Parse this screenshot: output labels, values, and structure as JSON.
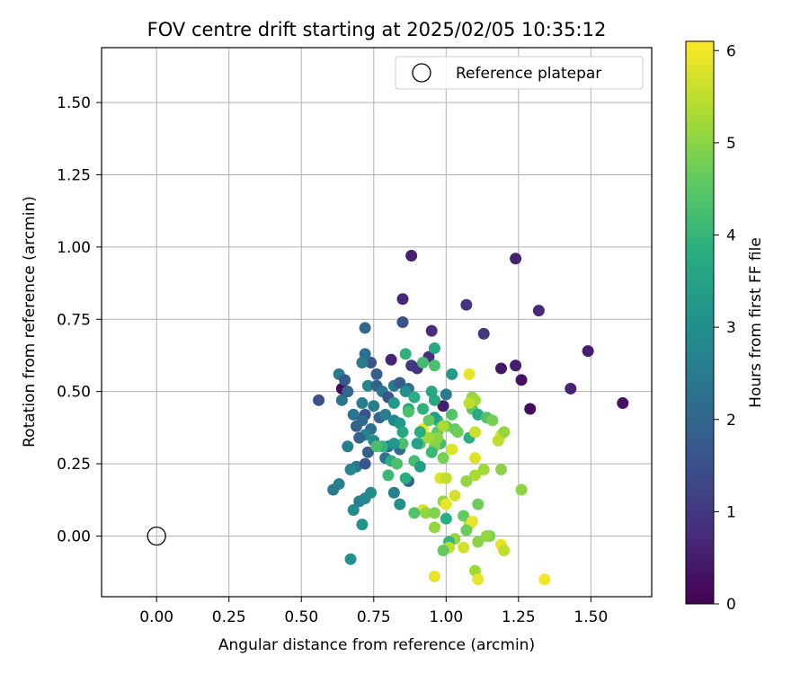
{
  "chart_data": {
    "type": "scatter",
    "title": "FOV centre drift starting at 2025/02/05 10:35:12",
    "xlabel": "Angular distance from reference (arcmin)",
    "ylabel": "Rotation from reference (arcmin)",
    "xlim": [
      -0.19,
      1.71
    ],
    "ylim": [
      -0.21,
      1.69
    ],
    "xticks": [
      0.0,
      0.25,
      0.5,
      0.75,
      1.0,
      1.25,
      1.5
    ],
    "yticks": [
      0.0,
      0.25,
      0.5,
      0.75,
      1.0,
      1.25,
      1.5
    ],
    "grid": true,
    "legend_position": "top-right",
    "reference": {
      "name": "Reference platepar",
      "x": 0.0,
      "y": 0.0
    },
    "colorbar": {
      "label": "Hours from first FF file",
      "colormap": "viridis",
      "range": [
        0,
        6.1
      ],
      "ticks": [
        0,
        1,
        2,
        3,
        4,
        5,
        6
      ]
    },
    "series": [
      {
        "points": [
          [
            0.88,
            0.97,
            0.5
          ],
          [
            1.24,
            0.96,
            0.6
          ],
          [
            0.85,
            0.82,
            0.7
          ],
          [
            1.07,
            0.8,
            0.9
          ],
          [
            1.32,
            0.78,
            0.7
          ],
          [
            0.95,
            0.71,
            0.8
          ],
          [
            1.13,
            0.7,
            1.0
          ],
          [
            1.49,
            0.64,
            0.5
          ],
          [
            1.26,
            0.54,
            0.3
          ],
          [
            1.19,
            0.58,
            0.4
          ],
          [
            1.24,
            0.59,
            0.5
          ],
          [
            1.43,
            0.51,
            0.6
          ],
          [
            1.61,
            0.46,
            0.3
          ],
          [
            1.29,
            0.44,
            0.2
          ],
          [
            0.88,
            0.59,
            1.0
          ],
          [
            0.9,
            0.58,
            0.9
          ],
          [
            0.94,
            0.62,
            0.8
          ],
          [
            0.81,
            0.61,
            0.6
          ],
          [
            0.99,
            0.45,
            0.5
          ],
          [
            0.64,
            0.51,
            0.2
          ],
          [
            0.56,
            0.47,
            1.5
          ],
          [
            0.85,
            0.74,
            1.5
          ],
          [
            0.72,
            0.72,
            2.0
          ],
          [
            0.74,
            0.6,
            1.6
          ],
          [
            0.76,
            0.56,
            1.8
          ],
          [
            0.72,
            0.63,
            2.2
          ],
          [
            0.63,
            0.56,
            2.5
          ],
          [
            0.65,
            0.54,
            1.7
          ],
          [
            0.71,
            0.6,
            2.5
          ],
          [
            0.73,
            0.52,
            2.8
          ],
          [
            0.76,
            0.52,
            1.9
          ],
          [
            0.66,
            0.5,
            2.0
          ],
          [
            0.64,
            0.47,
            2.3
          ],
          [
            0.71,
            0.46,
            2.6
          ],
          [
            0.78,
            0.5,
            2.4
          ],
          [
            0.8,
            0.48,
            1.6
          ],
          [
            0.82,
            0.52,
            2.5
          ],
          [
            0.84,
            0.53,
            1.8
          ],
          [
            0.87,
            0.51,
            2.2
          ],
          [
            0.75,
            0.45,
            2.5
          ],
          [
            0.72,
            0.42,
            1.6
          ],
          [
            0.68,
            0.42,
            2.3
          ],
          [
            0.71,
            0.4,
            2.1
          ],
          [
            0.69,
            0.38,
            1.9
          ],
          [
            0.74,
            0.37,
            2.2
          ],
          [
            0.77,
            0.41,
            1.9
          ],
          [
            0.79,
            0.42,
            2.6
          ],
          [
            0.82,
            0.4,
            2.8
          ],
          [
            0.72,
            0.35,
            2.7
          ],
          [
            0.75,
            0.33,
            2.9
          ],
          [
            0.7,
            0.34,
            2.0
          ],
          [
            0.73,
            0.29,
            1.8
          ],
          [
            0.66,
            0.31,
            2.6
          ],
          [
            0.69,
            0.24,
            2.4
          ],
          [
            0.72,
            0.25,
            1.6
          ],
          [
            0.67,
            0.23,
            2.8
          ],
          [
            0.79,
            0.27,
            2.3
          ],
          [
            0.8,
            0.31,
            2.2
          ],
          [
            0.84,
            0.3,
            2.1
          ],
          [
            0.87,
            0.19,
            1.9
          ],
          [
            0.63,
            0.18,
            2.7
          ],
          [
            0.61,
            0.16,
            2.5
          ],
          [
            0.7,
            0.12,
            2.6
          ],
          [
            0.72,
            0.13,
            2.8
          ],
          [
            0.74,
            0.15,
            2.9
          ],
          [
            0.68,
            0.09,
            2.9
          ],
          [
            0.71,
            0.04,
            3.1
          ],
          [
            0.67,
            -0.08,
            3.1
          ],
          [
            0.82,
            0.15,
            2.7
          ],
          [
            0.84,
            0.11,
            3.0
          ],
          [
            0.84,
            0.39,
            3.2
          ],
          [
            0.82,
            0.46,
            3.3
          ],
          [
            0.87,
            0.44,
            3.5
          ],
          [
            0.86,
            0.5,
            3.0
          ],
          [
            0.89,
            0.48,
            3.8
          ],
          [
            0.92,
            0.44,
            3.9
          ],
          [
            0.96,
            0.47,
            3.7
          ],
          [
            0.95,
            0.5,
            3.6
          ],
          [
            1.0,
            0.49,
            2.5
          ],
          [
            0.96,
            0.65,
            3.7
          ],
          [
            0.92,
            0.6,
            4.2
          ],
          [
            0.96,
            0.59,
            4.3
          ],
          [
            1.02,
            0.56,
            3.3
          ],
          [
            0.86,
            0.63,
            3.9
          ],
          [
            0.97,
            0.4,
            4.1
          ],
          [
            1.0,
            0.38,
            4.6
          ],
          [
            1.03,
            0.37,
            4.6
          ],
          [
            1.04,
            0.36,
            4.7
          ],
          [
            1.08,
            0.34,
            3.8
          ],
          [
            1.09,
            0.44,
            4.5
          ],
          [
            1.11,
            0.42,
            3.7
          ],
          [
            1.14,
            0.41,
            4.4
          ],
          [
            1.16,
            0.4,
            4.8
          ],
          [
            1.09,
            0.48,
            5.1
          ],
          [
            1.1,
            0.47,
            5.2
          ],
          [
            1.08,
            0.46,
            5.5
          ],
          [
            1.08,
            0.56,
            5.9
          ],
          [
            0.97,
            0.36,
            4.5
          ],
          [
            0.98,
            0.32,
            4.2
          ],
          [
            0.96,
            0.31,
            4.9
          ],
          [
            0.91,
            0.32,
            4.5
          ],
          [
            0.9,
            0.32,
            3.5
          ],
          [
            0.85,
            0.32,
            4.3
          ],
          [
            0.82,
            0.32,
            3.2
          ],
          [
            0.78,
            0.31,
            3.9
          ],
          [
            0.76,
            0.31,
            4.3
          ],
          [
            0.8,
            0.21,
            4.1
          ],
          [
            0.81,
            0.26,
            3.8
          ],
          [
            0.83,
            0.25,
            4.3
          ],
          [
            0.86,
            0.2,
            3.8
          ],
          [
            0.89,
            0.26,
            4.2
          ],
          [
            0.91,
            0.24,
            3.4
          ],
          [
            0.95,
            0.29,
            4.1
          ],
          [
            0.97,
            0.34,
            5.0
          ],
          [
            1.02,
            0.3,
            5.8
          ],
          [
            1.1,
            0.27,
            5.8
          ],
          [
            1.1,
            0.21,
            5.3
          ],
          [
            1.13,
            0.23,
            5.2
          ],
          [
            1.19,
            0.23,
            5.0
          ],
          [
            1.19,
            0.35,
            5.8
          ],
          [
            1.2,
            0.36,
            5.1
          ],
          [
            1.18,
            0.33,
            5.5
          ],
          [
            1.1,
            0.36,
            5.6
          ],
          [
            1.07,
            0.19,
            5.1
          ],
          [
            1.26,
            0.16,
            5.0
          ],
          [
            0.98,
            0.2,
            5.8
          ],
          [
            1.0,
            0.2,
            5.5
          ],
          [
            0.99,
            0.12,
            5.1
          ],
          [
            1.0,
            0.11,
            5.9
          ],
          [
            1.03,
            0.14,
            5.7
          ],
          [
            0.92,
            0.09,
            5.8
          ],
          [
            0.93,
            0.08,
            5.1
          ],
          [
            0.89,
            0.08,
            4.4
          ],
          [
            0.96,
            0.08,
            4.9
          ],
          [
            1.0,
            0.06,
            3.8
          ],
          [
            0.96,
            0.03,
            5.1
          ],
          [
            1.08,
            0.04,
            5.5
          ],
          [
            1.06,
            0.07,
            4.6
          ],
          [
            1.09,
            0.05,
            5.9
          ],
          [
            1.11,
            0.11,
            4.7
          ],
          [
            1.07,
            0.02,
            4.7
          ],
          [
            1.15,
            0.0,
            4.8
          ],
          [
            1.14,
            0.0,
            5.1
          ],
          [
            1.03,
            -0.01,
            5.1
          ],
          [
            1.01,
            -0.02,
            4.0
          ],
          [
            1.06,
            -0.04,
            5.7
          ],
          [
            1.01,
            -0.04,
            5.5
          ],
          [
            0.99,
            -0.05,
            4.6
          ],
          [
            1.11,
            -0.02,
            5.0
          ],
          [
            1.19,
            -0.03,
            5.9
          ],
          [
            1.2,
            -0.05,
            5.5
          ],
          [
            0.96,
            -0.14,
            5.9
          ],
          [
            1.1,
            -0.12,
            5.2
          ],
          [
            1.11,
            -0.15,
            5.9
          ],
          [
            1.34,
            -0.15,
            6.0
          ],
          [
            0.92,
            0.37,
            5.9
          ],
          [
            0.94,
            0.34,
            5.2
          ],
          [
            0.99,
            0.27,
            4.8
          ],
          [
            0.99,
            0.38,
            5.3
          ],
          [
            1.02,
            0.42,
            4.4
          ],
          [
            0.96,
            0.41,
            3.4
          ],
          [
            0.94,
            0.4,
            4.6
          ],
          [
            0.91,
            0.36,
            3.8
          ],
          [
            0.85,
            0.36,
            3.6
          ],
          [
            0.87,
            0.43,
            4.3
          ]
        ]
      }
    ]
  }
}
